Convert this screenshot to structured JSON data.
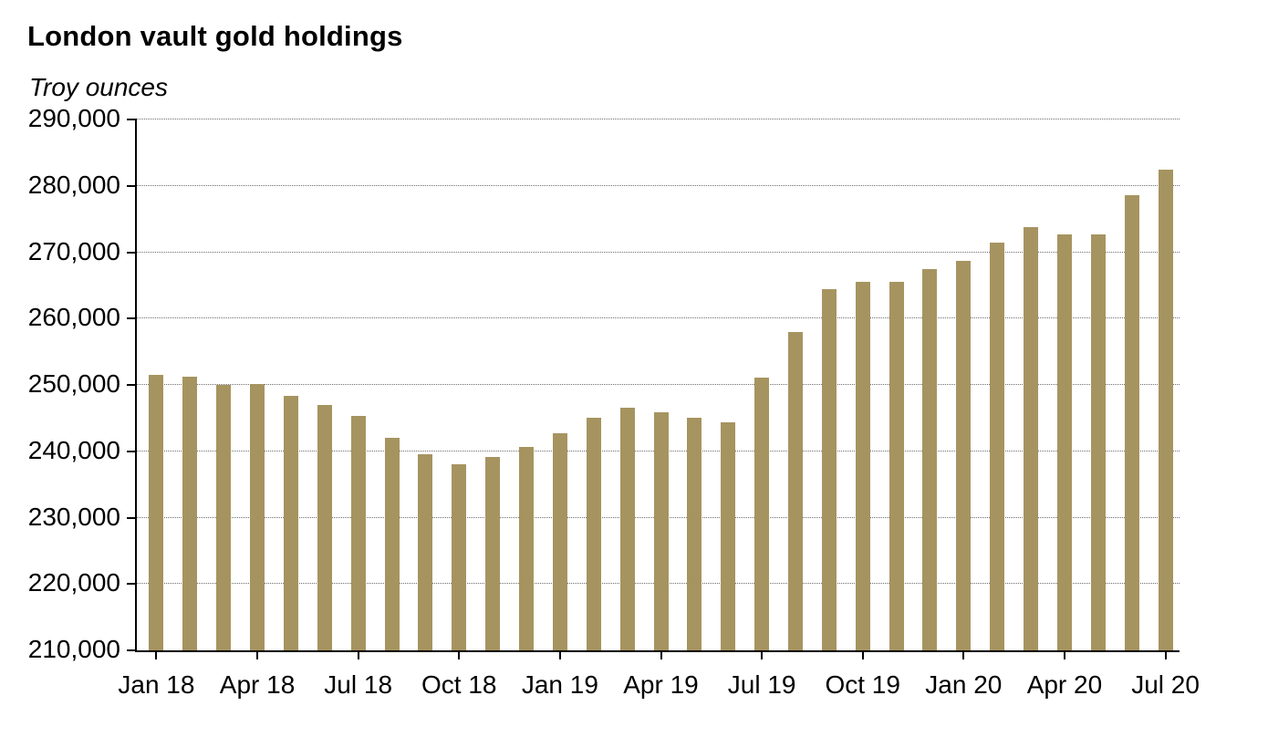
{
  "header": {
    "title": "London vault gold holdings",
    "subtitle": "Troy ounces"
  },
  "chart_data": {
    "type": "bar",
    "title": "London vault gold holdings",
    "ylabel": "Troy ounces",
    "categories": [
      "Jan 18",
      "Feb 18",
      "Mar 18",
      "Apr 18",
      "May 18",
      "Jun 18",
      "Jul 18",
      "Aug 18",
      "Sep 18",
      "Oct 18",
      "Nov 18",
      "Dec 18",
      "Jan 19",
      "Feb 19",
      "Mar 19",
      "Apr 19",
      "May 19",
      "Jun 19",
      "Jul 19",
      "Aug 19",
      "Sep 19",
      "Oct 19",
      "Nov 19",
      "Dec 19",
      "Jan 20",
      "Feb 20",
      "Mar 20",
      "Apr 20",
      "May 20",
      "Jun 20",
      "Jul 20"
    ],
    "values": [
      251500,
      251300,
      250000,
      250200,
      248400,
      247000,
      245300,
      242000,
      239500,
      238100,
      239200,
      240700,
      242700,
      245100,
      246500,
      245900,
      245100,
      244400,
      251100,
      258000,
      264500,
      265500,
      265600,
      267500,
      268700,
      271400,
      273800,
      272700,
      272700,
      278600,
      282500
    ],
    "x_tick_labels": [
      "Jan 18",
      "Apr 18",
      "Jul 18",
      "Oct 18",
      "Jan 19",
      "Apr 19",
      "Jul 19",
      "Oct 19",
      "Jan 20",
      "Apr 20",
      "Jul 20"
    ],
    "x_tick_every": 3,
    "ylim": [
      210000,
      290000
    ],
    "y_tick_step": 10000,
    "y_tick_labels": [
      "210,000",
      "220,000",
      "230,000",
      "240,000",
      "250,000",
      "260,000",
      "270,000",
      "280,000",
      "290,000"
    ],
    "grid": "horizontal-dotted",
    "legend": "none"
  },
  "colors": {
    "bar": "#A69460",
    "grid": "#6E6E6E",
    "axis": "#000000",
    "text": "#000000",
    "background": "#FFFFFF"
  }
}
